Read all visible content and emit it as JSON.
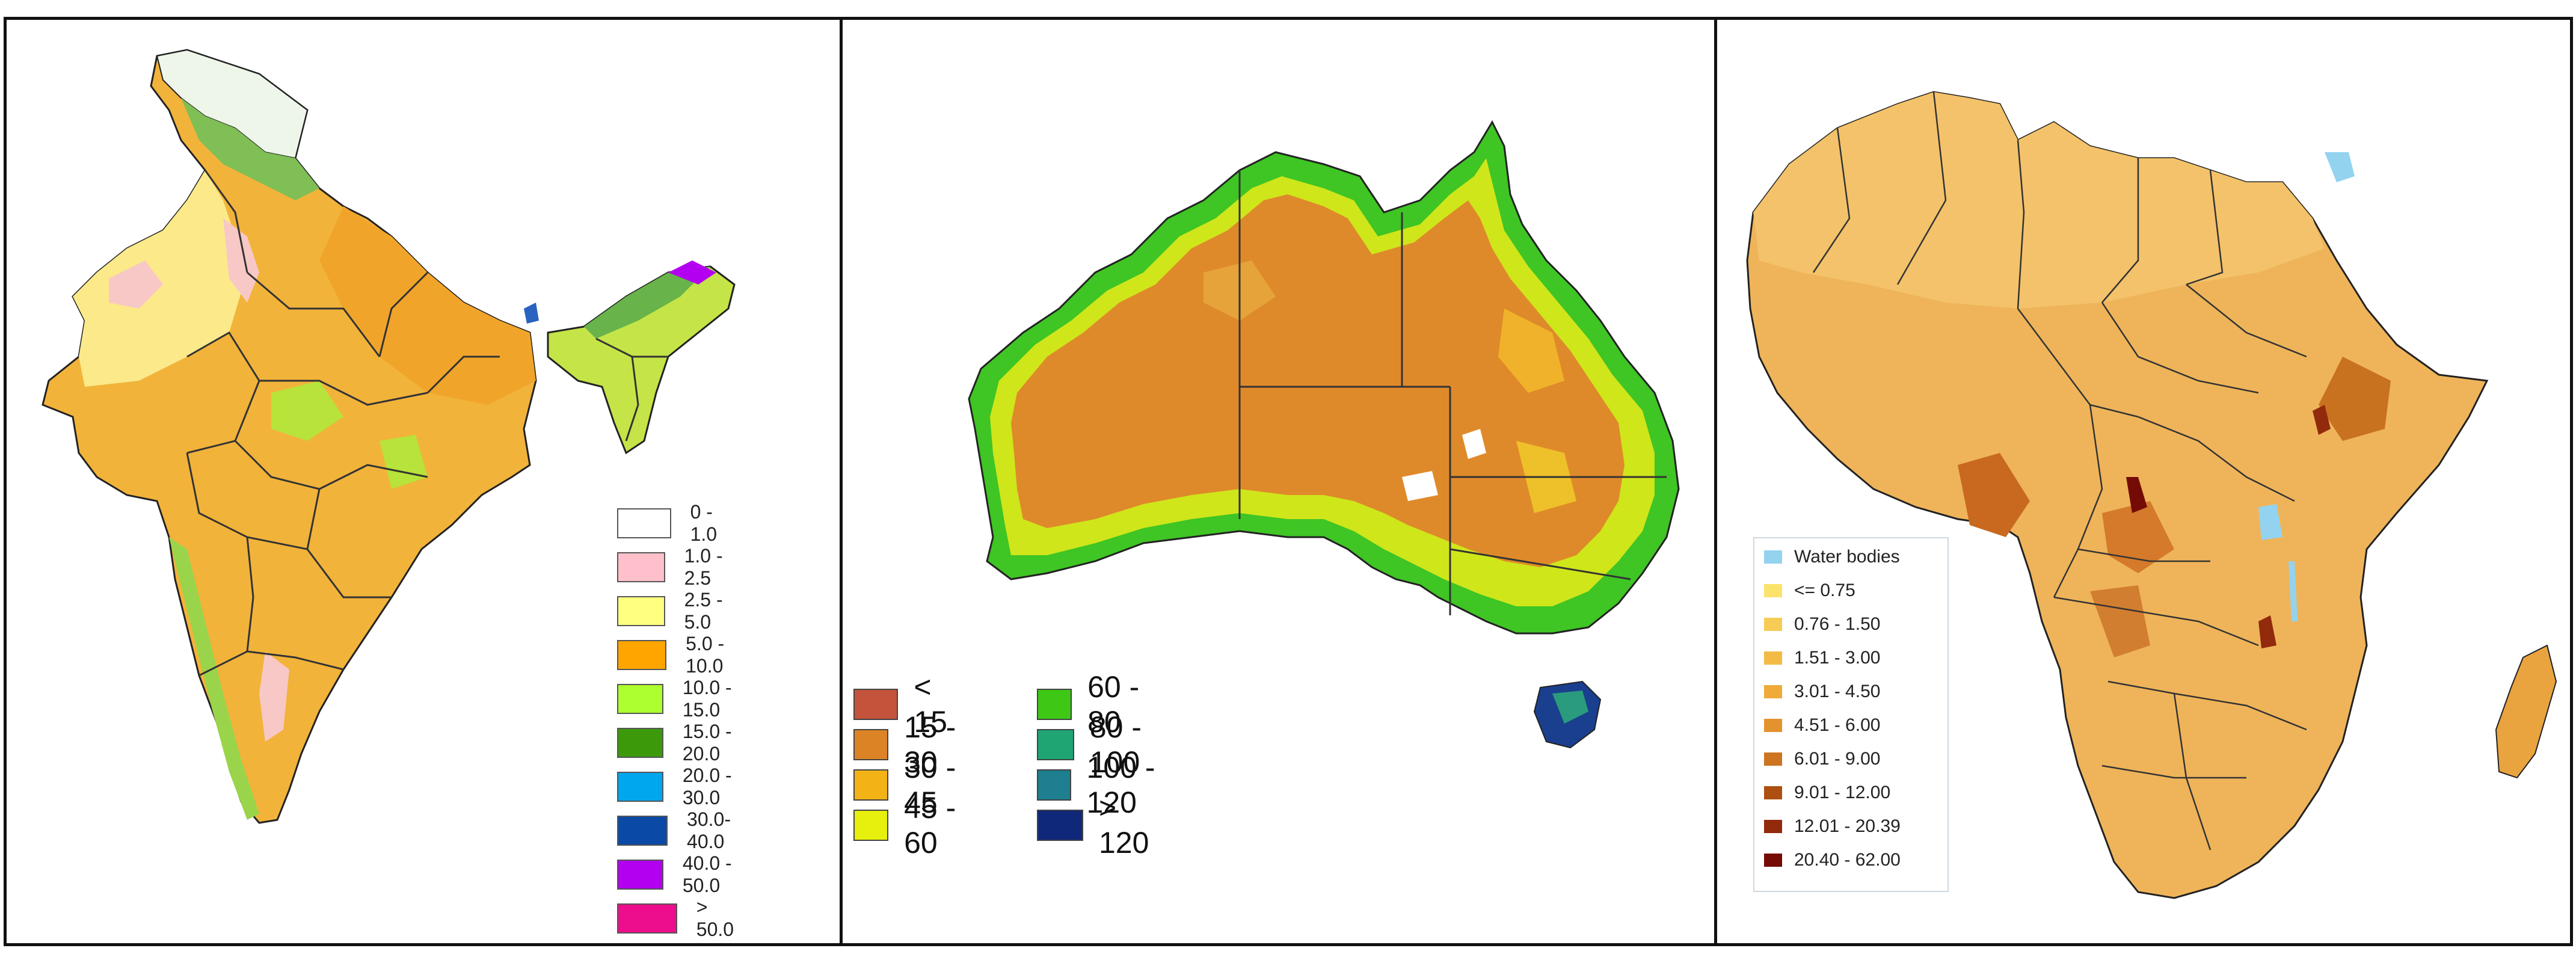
{
  "panels": [
    {
      "region": "India",
      "legend": [
        {
          "label": "0 - 1.0",
          "color": "#ffffff"
        },
        {
          "label": "1.0 - 2.5",
          "color": "#ffc0cb"
        },
        {
          "label": "2.5 - 5.0",
          "color": "#ffff80"
        },
        {
          "label": "5.0 - 10.0",
          "color": "#ffa500"
        },
        {
          "label": "10.0 - 15.0",
          "color": "#adff2f"
        },
        {
          "label": "15.0 - 20.0",
          "color": "#3c9a0a"
        },
        {
          "label": "20.0 - 30.0",
          "color": "#00a6ee"
        },
        {
          "label": "30.0- 40.0",
          "color": "#0a4aa6"
        },
        {
          "label": "40.0 - 50.0",
          "color": "#b400f0"
        },
        {
          "label": "> 50.0",
          "color": "#ec0e8c"
        }
      ]
    },
    {
      "region": "Australia",
      "legend_left": [
        {
          "label": "< 15",
          "color": "#c4533b"
        },
        {
          "label": "15 - 30",
          "color": "#dc8326"
        },
        {
          "label": "30 - 45",
          "color": "#f3b316"
        },
        {
          "label": "45 - 60",
          "color": "#e6f00c"
        }
      ],
      "legend_right": [
        {
          "label": "60 - 80",
          "color": "#3ec815"
        },
        {
          "label": "80 - 100",
          "color": "#1fa573"
        },
        {
          "label": "100 - 120",
          "color": "#1d7f8f"
        },
        {
          "label": "> 120",
          "color": "#10287a"
        }
      ]
    },
    {
      "region": "Africa",
      "legend": [
        {
          "label": "Water bodies",
          "color": "#93d3f0"
        },
        {
          "label": "<= 0.75",
          "color": "#fbe36b"
        },
        {
          "label": "0.76 - 1.50",
          "color": "#f7cc56"
        },
        {
          "label": "1.51 - 3.00",
          "color": "#f3bb45"
        },
        {
          "label": "3.01 - 4.50",
          "color": "#efaa3a"
        },
        {
          "label": "4.51 - 6.00",
          "color": "#e4922e"
        },
        {
          "label": "6.01 - 9.00",
          "color": "#cc7421"
        },
        {
          "label": "9.01 - 12.00",
          "color": "#ad4f10"
        },
        {
          "label": "12.01 - 20.39",
          "color": "#922a0c"
        },
        {
          "label": "20.40 - 62.00",
          "color": "#740b05"
        }
      ]
    }
  ]
}
